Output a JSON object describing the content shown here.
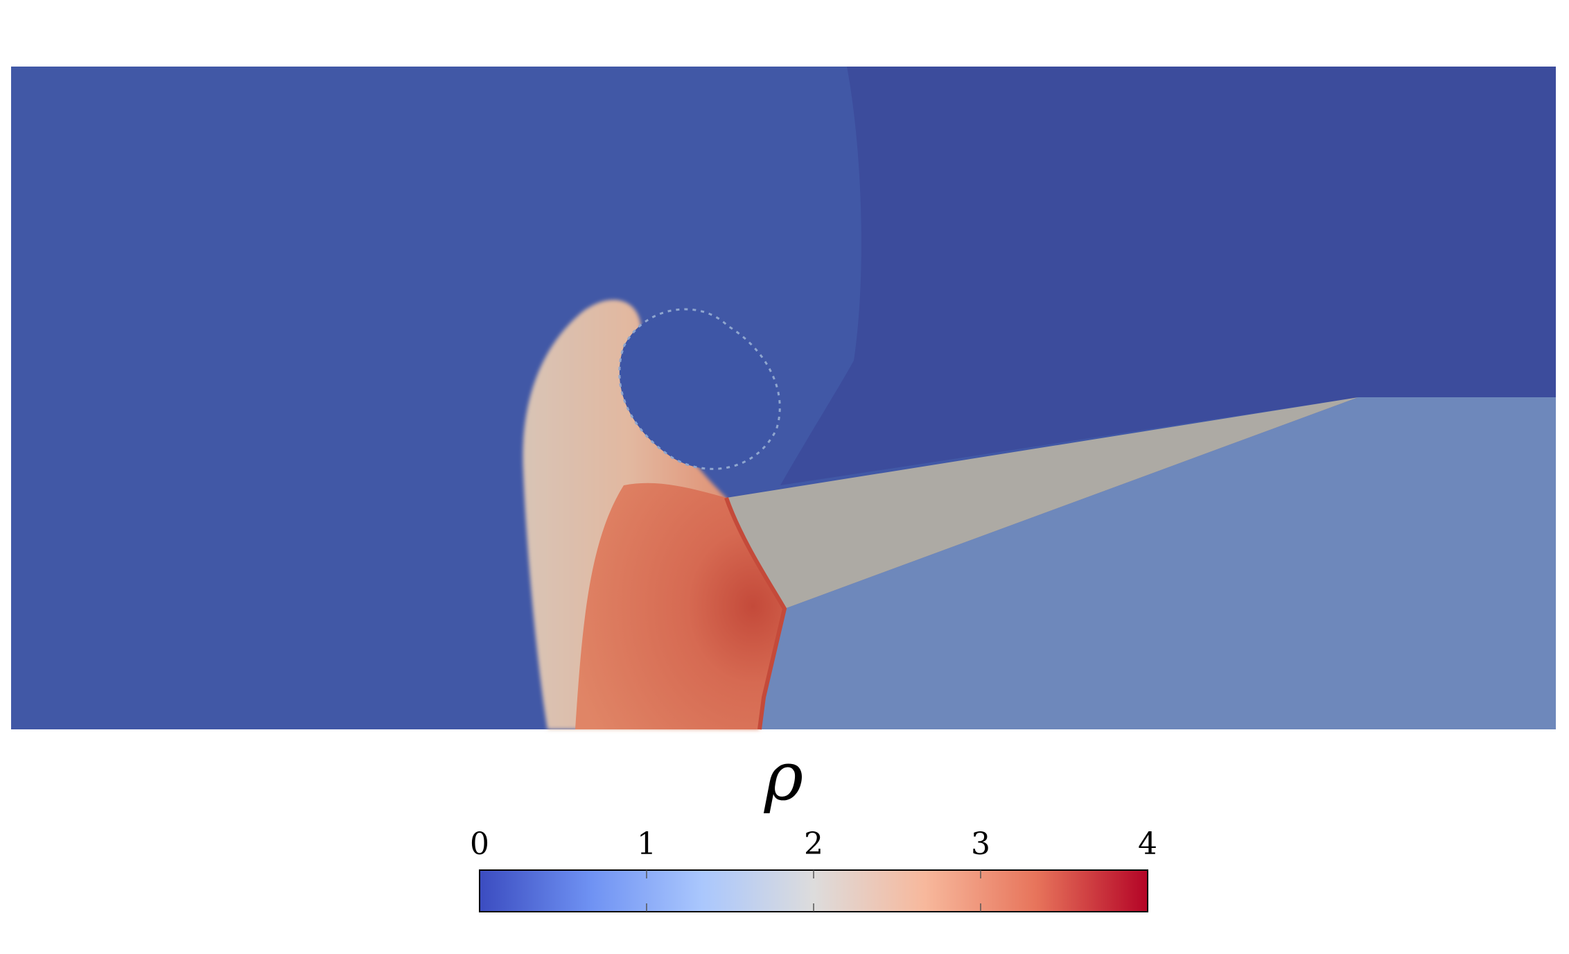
{
  "chart_data": {
    "type": "heatmap",
    "colorbar": {
      "title": "ρ",
      "range": [
        0,
        4
      ],
      "ticks": [
        0,
        1,
        2,
        3,
        4
      ],
      "tick_labels": [
        "0",
        "1",
        "2",
        "3",
        "4"
      ],
      "colormap": "coolwarm",
      "color_stops": [
        "#3b4cc0",
        "#6f92f3",
        "#aac7fd",
        "#dddcdc",
        "#f7b89c",
        "#e7745b",
        "#b40426"
      ]
    },
    "regions": [
      {
        "name": "ambient",
        "value": 0.2,
        "color": "#4158a6"
      },
      {
        "name": "upper-right",
        "value": 0.15,
        "color": "#3c4c9c"
      },
      {
        "name": "lower-right",
        "value": 1.1,
        "color": "#6e88bb"
      },
      {
        "name": "shear-layer",
        "value": 1.9,
        "color": "#adaaa4"
      },
      {
        "name": "mixing-plume",
        "value": 2.0,
        "color": "#d8c4b6"
      },
      {
        "name": "compressed",
        "value": 3.1,
        "color": "#e08566"
      },
      {
        "name": "shock-front",
        "value": 3.6,
        "color": "#c44a3a"
      },
      {
        "name": "vortex-core",
        "value": 0.3,
        "color": "#3e56a6"
      }
    ],
    "grid": false
  }
}
